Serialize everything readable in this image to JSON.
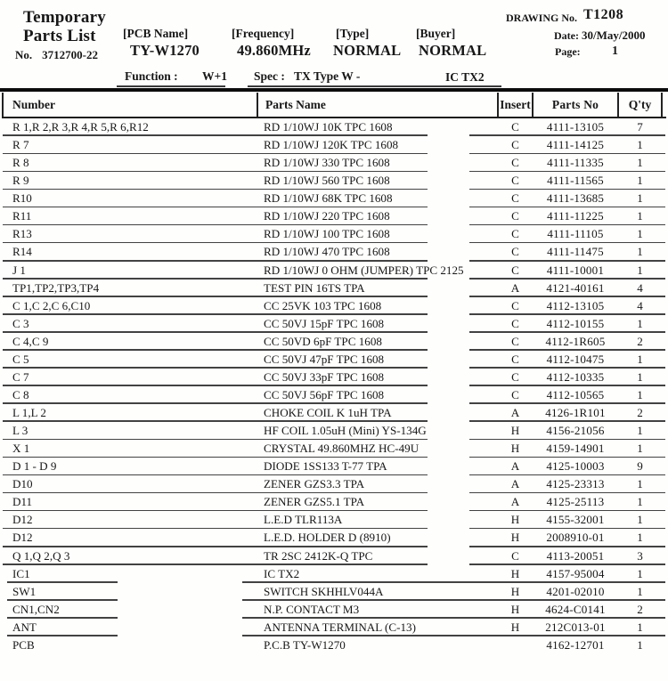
{
  "colors": {
    "paper": "#fefefd",
    "ink": "#171717",
    "rule_gray": "#424242"
  },
  "header": {
    "title_line1": "Temporary",
    "title_line2": "Parts List",
    "doc_no_label": "No.",
    "doc_no_value": "3712700-22",
    "pcb_name_label": "[PCB Name]",
    "pcb_name_value": "TY-W1270",
    "frequency_label": "[Frequency]",
    "frequency_value": "49.860MHz",
    "type_label": "[Type]",
    "type_value": "NORMAL",
    "buyer_label": "[Buyer]",
    "buyer_value": "NORMAL",
    "drawing_no_label": "DRAWING No.",
    "drawing_no_value": "T1208",
    "date_label": "Date:",
    "date_value": "30/May/2000",
    "page_label": "Page:",
    "page_value": "1",
    "function_label": "Function :",
    "function_value": "W+1",
    "spec_label": "Spec :",
    "spec_value": "TX Type W -",
    "ic_value": "IC TX2"
  },
  "table": {
    "columns": [
      "Number",
      "Parts Name",
      "Insert",
      "Parts No",
      "Q'ty"
    ],
    "rows": [
      {
        "number": "R 1,R 2,R 3,R 4,R 5,R 6,R12",
        "parts_name": "RD 1/10WJ 10K TPC 1608",
        "insert": "C",
        "parts_no": "4111-13105",
        "qty": "7"
      },
      {
        "number": "R 7",
        "parts_name": "RD 1/10WJ 120K TPC 1608",
        "insert": "C",
        "parts_no": "4111-14125",
        "qty": "1"
      },
      {
        "number": "R 8",
        "parts_name": "RD 1/10WJ 330 TPC 1608",
        "insert": "C",
        "parts_no": "4111-11335",
        "qty": "1"
      },
      {
        "number": "R 9",
        "parts_name": "RD 1/10WJ 560 TPC 1608",
        "insert": "C",
        "parts_no": "4111-11565",
        "qty": "1"
      },
      {
        "number": "R10",
        "parts_name": "RD 1/10WJ 68K TPC 1608",
        "insert": "C",
        "parts_no": "4111-13685",
        "qty": "1"
      },
      {
        "number": "R11",
        "parts_name": "RD 1/10WJ 220 TPC 1608",
        "insert": "C",
        "parts_no": "4111-11225",
        "qty": "1"
      },
      {
        "number": "R13",
        "parts_name": "RD 1/10WJ 100 TPC 1608",
        "insert": "C",
        "parts_no": "4111-11105",
        "qty": "1"
      },
      {
        "number": "R14",
        "parts_name": "RD 1/10WJ 470 TPC 1608",
        "insert": "C",
        "parts_no": "4111-11475",
        "qty": "1"
      },
      {
        "number": "J 1",
        "parts_name": "RD 1/10WJ 0 OHM (JUMPER) TPC 2125",
        "insert": "C",
        "parts_no": "4111-10001",
        "qty": "1"
      },
      {
        "number": "TP1,TP2,TP3,TP4",
        "parts_name": "TEST PIN 16TS TPA",
        "insert": "A",
        "parts_no": "4121-40161",
        "qty": "4"
      },
      {
        "number": "C 1,C 2,C 6,C10",
        "parts_name": "CC 25VK 103 TPC 1608",
        "insert": "C",
        "parts_no": "4112-13105",
        "qty": "4"
      },
      {
        "number": "C 3",
        "parts_name": "CC 50VJ 15pF TPC 1608",
        "insert": "C",
        "parts_no": "4112-10155",
        "qty": "1"
      },
      {
        "number": "C 4,C 9",
        "parts_name": "CC 50VD 6pF TPC 1608",
        "insert": "C",
        "parts_no": "4112-1R605",
        "qty": "2"
      },
      {
        "number": "C 5",
        "parts_name": "CC 50VJ 47pF TPC 1608",
        "insert": "C",
        "parts_no": "4112-10475",
        "qty": "1"
      },
      {
        "number": "C 7",
        "parts_name": "CC 50VJ 33pF TPC 1608",
        "insert": "C",
        "parts_no": "4112-10335",
        "qty": "1"
      },
      {
        "number": "C 8",
        "parts_name": "CC 50VJ 56pF TPC 1608",
        "insert": "C",
        "parts_no": "4112-10565",
        "qty": "1"
      },
      {
        "number": "L 1,L 2",
        "parts_name": "CHOKE COIL K 1uH TPA",
        "insert": "A",
        "parts_no": "4126-1R101",
        "qty": "2"
      },
      {
        "number": "L 3",
        "parts_name": "HF COIL 1.05uH (Mini) YS-134G",
        "insert": "H",
        "parts_no": "4156-21056",
        "qty": "1"
      },
      {
        "number": "X 1",
        "parts_name": "CRYSTAL 49.860MHZ HC-49U",
        "insert": "H",
        "parts_no": "4159-14901",
        "qty": "1"
      },
      {
        "number": "D 1 - D 9",
        "parts_name": "DIODE 1SS133 T-77 TPA",
        "insert": "A",
        "parts_no": "4125-10003",
        "qty": "9"
      },
      {
        "number": "D10",
        "parts_name": "ZENER GZS3.3 TPA",
        "insert": "A",
        "parts_no": "4125-23313",
        "qty": "1"
      },
      {
        "number": "D11",
        "parts_name": "ZENER GZS5.1 TPA",
        "insert": "A",
        "parts_no": "4125-25113",
        "qty": "1"
      },
      {
        "number": "D12",
        "parts_name": "L.E.D TLR113A",
        "insert": "H",
        "parts_no": "4155-32001",
        "qty": "1"
      },
      {
        "number": "D12",
        "parts_name": "L.E.D. HOLDER D (8910)",
        "insert": "H",
        "parts_no": "2008910-01",
        "qty": "1"
      },
      {
        "number": "Q 1,Q 2,Q 3",
        "parts_name": "TR 2SC 2412K-Q TPC",
        "insert": "C",
        "parts_no": "4113-20051",
        "qty": "3"
      },
      {
        "number": "IC1",
        "parts_name": "IC TX2",
        "insert": "H",
        "parts_no": "4157-95004",
        "qty": "1"
      },
      {
        "number": "SW1",
        "parts_name": "SWITCH SKHHLV044A",
        "insert": "H",
        "parts_no": "4201-02010",
        "qty": "1"
      },
      {
        "number": "CN1,CN2",
        "parts_name": "N.P. CONTACT M3",
        "insert": "H",
        "parts_no": "4624-C0141",
        "qty": "2"
      },
      {
        "number": "ANT",
        "parts_name": "ANTENNA TERMINAL (C-13)",
        "insert": "H",
        "parts_no": "212C013-01",
        "qty": "1"
      },
      {
        "number": "PCB",
        "parts_name": "P.C.B TY-W1270",
        "insert": "",
        "parts_no": "4162-12701",
        "qty": "1"
      }
    ]
  }
}
